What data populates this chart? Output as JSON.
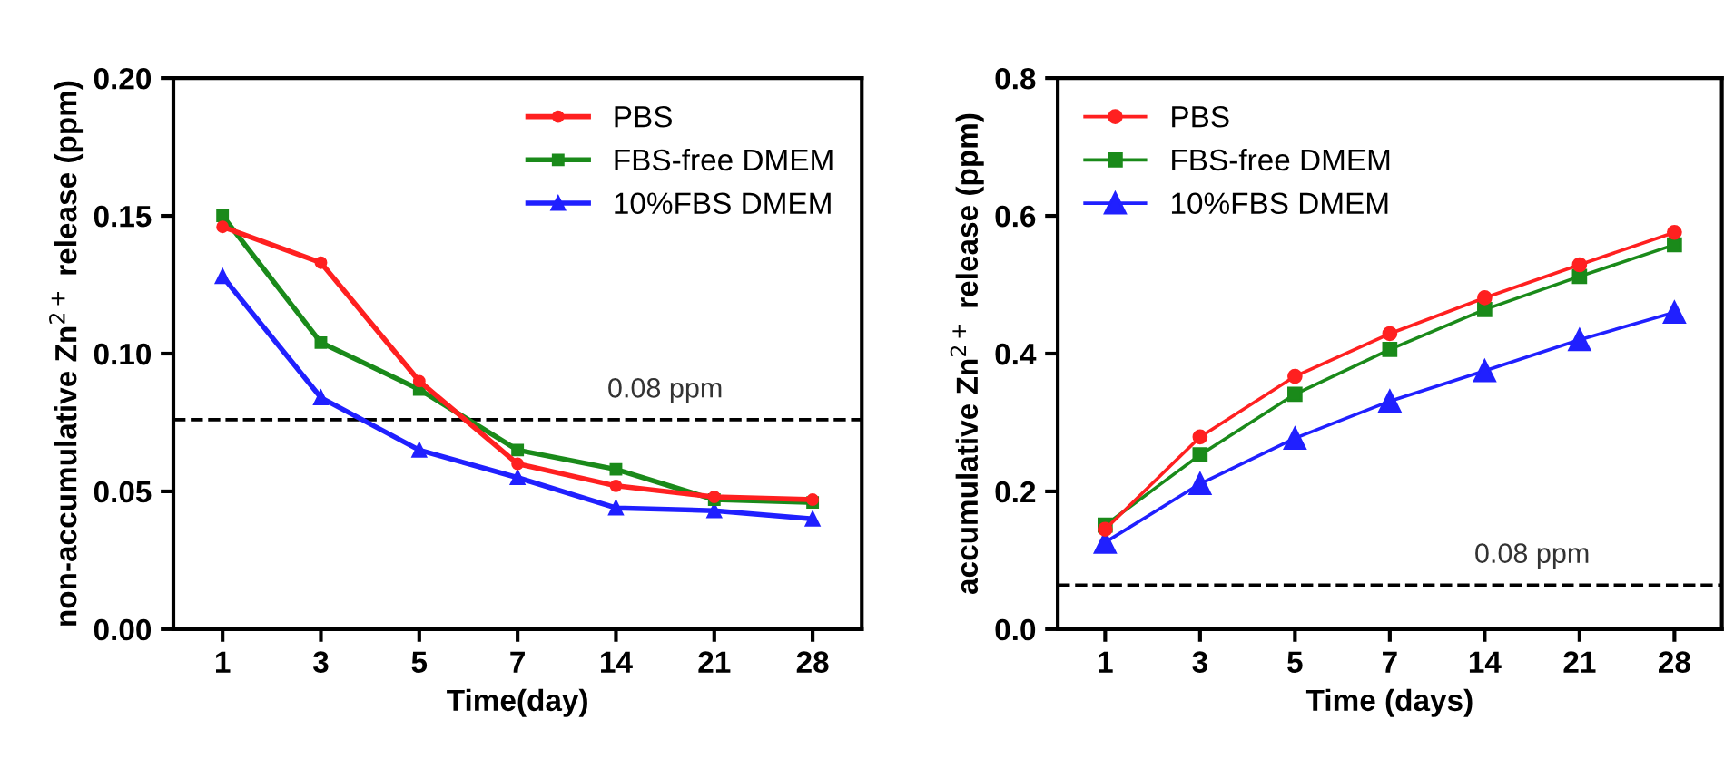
{
  "chart_data": [
    {
      "type": "line",
      "xlabel": "Time(day)",
      "ylabel": "non-accumulative Zn$^{2+}$ release (ppm)",
      "categories": [
        "1",
        "3",
        "5",
        "7",
        "14",
        "21",
        "28"
      ],
      "ylim": [
        0,
        0.2
      ],
      "yticks": [
        {
          "value": 0,
          "label": "0.00"
        },
        {
          "value": 0.05,
          "label": "0.05"
        },
        {
          "value": 0.1,
          "label": "0.10"
        },
        {
          "value": 0.15,
          "label": "0.15"
        },
        {
          "value": 0.2,
          "label": "0.20"
        }
      ],
      "grid": false,
      "legend": "top right",
      "series": [
        {
          "name": "PBS",
          "color": "#ff2020",
          "marker": "circle",
          "values": [
            0.146,
            0.133,
            0.09,
            0.06,
            0.052,
            0.048,
            0.047
          ]
        },
        {
          "name": "FBS-free DMEM",
          "color": "#1a8a1a",
          "marker": "square",
          "values": [
            0.15,
            0.104,
            0.087,
            0.065,
            0.058,
            0.047,
            0.046
          ]
        },
        {
          "name": "10%FBS DMEM",
          "color": "#2020ff",
          "marker": "triangle",
          "values": [
            0.128,
            0.084,
            0.065,
            0.055,
            0.044,
            0.043,
            0.04
          ]
        }
      ],
      "ref_lines": [
        {
          "axis": "y",
          "value": 0.076,
          "label": "0.08 ppm",
          "color": "#000000",
          "line_style": "dashed"
        }
      ]
    },
    {
      "type": "line",
      "xlabel": "Time (days)",
      "ylabel": "accumulative Zn$^{2+}$ release (ppm)",
      "categories": [
        "1",
        "3",
        "5",
        "7",
        "14",
        "21",
        "28"
      ],
      "ylim": [
        0,
        0.8
      ],
      "yticks": [
        {
          "value": 0,
          "label": "0.0"
        },
        {
          "value": 0.2,
          "label": "0.2"
        },
        {
          "value": 0.4,
          "label": "0.4"
        },
        {
          "value": 0.6,
          "label": "0.6"
        },
        {
          "value": 0.8,
          "label": "0.8"
        }
      ],
      "grid": false,
      "legend": "top left",
      "series": [
        {
          "name": "PBS",
          "color": "#ff2020",
          "marker": "circle",
          "values": [
            0.145,
            0.279,
            0.367,
            0.429,
            0.481,
            0.529,
            0.576
          ]
        },
        {
          "name": "FBS-free DMEM",
          "color": "#1a8a1a",
          "marker": "square",
          "values": [
            0.151,
            0.253,
            0.341,
            0.406,
            0.464,
            0.512,
            0.558
          ]
        },
        {
          "name": "10%FBS DMEM",
          "color": "#2020ff",
          "marker": "triangle",
          "values": [
            0.126,
            0.211,
            0.277,
            0.331,
            0.375,
            0.42,
            0.46
          ]
        }
      ],
      "ref_lines": [
        {
          "axis": "y",
          "value": 0.064,
          "label": "0.08 ppm",
          "color": "#000000",
          "line_style": "dashed"
        }
      ]
    }
  ]
}
